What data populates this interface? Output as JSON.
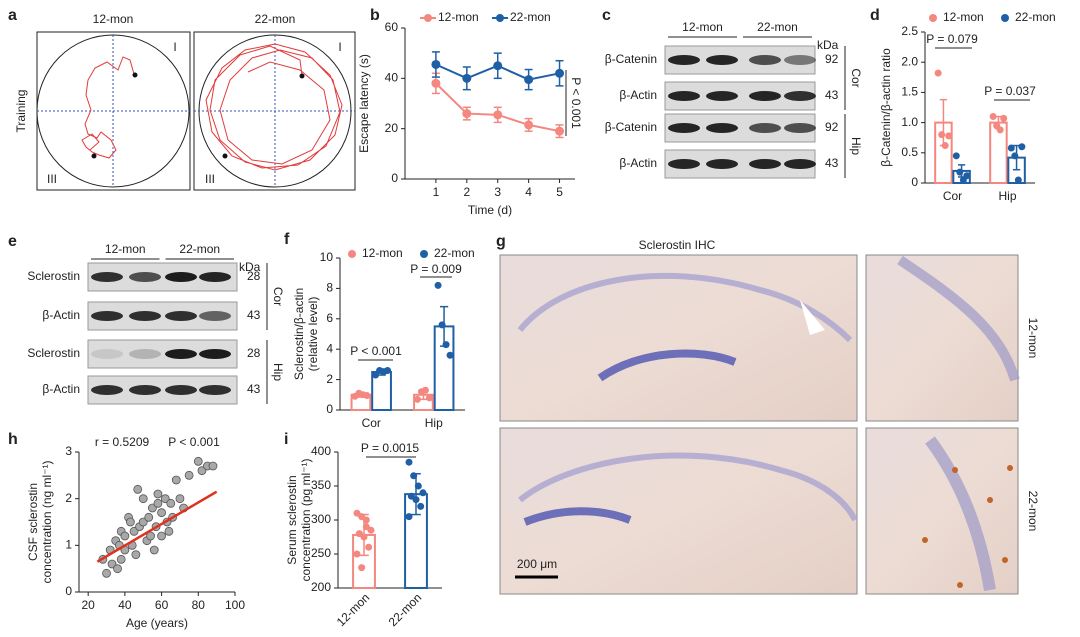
{
  "maze": {
    "label": "a",
    "titles": [
      "12-mon",
      "22-mon"
    ],
    "ylabel": "Training",
    "quadrants": [
      "I",
      "III"
    ]
  },
  "blot_c": {
    "label": "c",
    "groups": [
      "12-mon",
      "22-mon"
    ],
    "unit": "kDa",
    "rows": [
      {
        "name": "β-Catenin",
        "kda": 92
      },
      {
        "name": "β-Actin",
        "kda": 43
      },
      {
        "name": "β-Catenin",
        "kda": 92
      },
      {
        "name": "β-Actin",
        "kda": 43
      }
    ],
    "tissues": [
      "Cor",
      "Hip"
    ]
  },
  "blot_e": {
    "label": "e",
    "groups": [
      "12-mon",
      "22-mon"
    ],
    "unit": "kDa",
    "rows": [
      {
        "name": "Sclerostin",
        "kda": 28
      },
      {
        "name": "β-Actin",
        "kda": 43
      },
      {
        "name": "Sclerostin",
        "kda": 28
      },
      {
        "name": "β-Actin",
        "kda": 43
      }
    ],
    "tissues": [
      "Cor",
      "Hip"
    ]
  },
  "ihc": {
    "label": "g",
    "title": "Sclerostin IHC",
    "rows": [
      "12-mon",
      "22-mon"
    ],
    "scale_bar": "200 μm"
  },
  "chart_data": [
    {
      "type": "line",
      "label": "b",
      "x": [
        1,
        2,
        3,
        4,
        5
      ],
      "xlim": [
        0,
        5.5
      ],
      "xticks": [
        1,
        2,
        3,
        4,
        5
      ],
      "ylim": [
        0,
        60
      ],
      "yticks": [
        0,
        20,
        40,
        60
      ],
      "xlabel": "Time (d)",
      "ylabel": "Escape latency (s)",
      "series": [
        {
          "name": "12-mon",
          "color": "#f4877f",
          "values": [
            38,
            26,
            25.5,
            21.5,
            19
          ],
          "errors": [
            4,
            2.5,
            3,
            2.5,
            2.5
          ]
        },
        {
          "name": "22-mon",
          "color": "#1f5fa6",
          "values": [
            45.5,
            40,
            45,
            39.5,
            42
          ],
          "errors": [
            5,
            4.5,
            5,
            4,
            5
          ]
        }
      ],
      "annotations": [
        "P < 0.001"
      ]
    },
    {
      "type": "bar",
      "label": "d",
      "categories": [
        "Cor",
        "Hip"
      ],
      "ylim": [
        0,
        2.5
      ],
      "yticks": [
        0,
        0.5,
        {
          "value": 1,
          "label": "1.0"
        },
        1.5,
        {
          "value": 2,
          "label": "2.0"
        },
        2.5
      ],
      "ylabel": "β-Catenin/β-actin ratio",
      "series": [
        {
          "name": "12-mon",
          "color": "#f4877f",
          "values": [
            1.0,
            1.0
          ],
          "errors": [
            0.38,
            0.1
          ],
          "points": [
            [
              1.82,
              0.8,
              0.62,
              0.78
            ],
            [
              1.1,
              0.95,
              0.88,
              1.07
            ]
          ]
        },
        {
          "name": "22-mon",
          "color": "#1f5fa6",
          "values": [
            0.2,
            0.42
          ],
          "errors": [
            0.1,
            0.2
          ],
          "points": [
            [
              0.45,
              0.18,
              0.05,
              0.12
            ],
            [
              0.58,
              0.45,
              0.05,
              0.6
            ]
          ]
        }
      ],
      "annotations": [
        "P = 0.079",
        "P = 0.037"
      ]
    },
    {
      "type": "bar",
      "label": "f",
      "categories": [
        "Cor",
        "Hip"
      ],
      "ylim": [
        0,
        10
      ],
      "yticks": [
        0,
        2,
        4,
        6,
        8,
        10
      ],
      "ylabel": [
        "Sclerostin/β-actin",
        "(relative level)"
      ],
      "series": [
        {
          "name": "12-mon",
          "color": "#f4877f",
          "values": [
            1.0,
            1.0
          ],
          "errors": [
            0.15,
            0.3
          ],
          "points": [
            [
              0.9,
              1.1,
              1.0,
              0.95
            ],
            [
              0.7,
              1.2,
              1.3,
              0.8
            ]
          ]
        },
        {
          "name": "22-mon",
          "color": "#1f5fa6",
          "values": [
            2.5,
            5.5
          ],
          "errors": [
            0.2,
            1.3
          ],
          "points": [
            [
              2.3,
              2.6,
              2.5,
              2.6
            ],
            [
              8.2,
              5.6,
              4.3,
              3.6
            ]
          ]
        }
      ],
      "annotations": [
        "P < 0.001",
        "P = 0.009"
      ]
    },
    {
      "type": "scatter",
      "label": "h",
      "xlim": [
        15,
        100
      ],
      "xticks": [
        20,
        40,
        60,
        80,
        100
      ],
      "ylim": [
        0,
        3
      ],
      "yticks": [
        0,
        1,
        2,
        3
      ],
      "xlabel": "Age (years)",
      "ylabel": [
        "CSF sclerostin",
        "concentration (ng ml⁻¹)"
      ],
      "color": "#a8a8a8",
      "x": [
        28,
        30,
        32,
        33,
        35,
        36,
        37,
        38,
        38,
        40,
        40,
        42,
        43,
        44,
        45,
        46,
        47,
        48,
        50,
        50,
        52,
        53,
        54,
        55,
        56,
        57,
        58,
        58,
        60,
        60,
        62,
        63,
        64,
        65,
        66,
        68,
        70,
        72,
        75,
        80,
        82,
        85,
        88
      ],
      "values": [
        0.7,
        0.4,
        0.9,
        0.6,
        1.1,
        0.5,
        1.0,
        1.3,
        0.7,
        1.2,
        0.9,
        1.6,
        1.5,
        1.0,
        1.3,
        0.8,
        2.2,
        1.4,
        1.5,
        2.0,
        1.1,
        1.6,
        1.2,
        1.8,
        0.9,
        1.4,
        1.9,
        2.1,
        1.7,
        1.2,
        2.0,
        1.5,
        1.3,
        1.9,
        1.6,
        2.4,
        2.0,
        1.8,
        2.5,
        2.8,
        2.6,
        2.7,
        2.7
      ],
      "fit": {
        "color": "#e0301e",
        "x": [
          25,
          90
        ],
        "values": [
          0.65,
          2.15
        ]
      },
      "annotations": [
        "r = 0.5209",
        "P < 0.001"
      ]
    },
    {
      "type": "bar",
      "label": "i",
      "categories": [
        "12-mon",
        "22-mon"
      ],
      "x_label_rotation": -45,
      "ylim": [
        200,
        400
      ],
      "yticks": [
        200,
        250,
        300,
        350,
        400
      ],
      "ylabel": [
        "Serum sclerostin",
        "concentration (pg ml⁻¹)"
      ],
      "series": [
        {
          "colors": [
            "#f4877f",
            "#1f5fa6"
          ],
          "values": [
            278,
            338
          ],
          "errors": [
            30,
            30
          ],
          "points": [
            [
              310,
              305,
              290,
              285,
              280,
              275,
              260,
              250,
              230,
              300
            ],
            [
              385,
              365,
              350,
              340,
              335,
              330,
              320,
              305
            ]
          ]
        }
      ],
      "annotations": [
        "P = 0.0015"
      ]
    }
  ]
}
